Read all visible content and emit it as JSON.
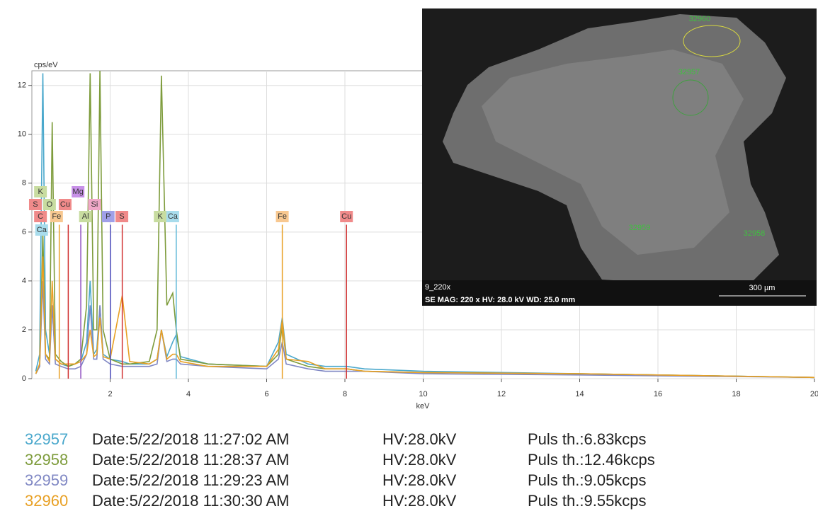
{
  "chart_data": {
    "type": "line",
    "y_label": "cps/eV",
    "x_label": "keV",
    "xlim": [
      0,
      20
    ],
    "ylim": [
      0,
      12.6
    ],
    "xticks": [
      2,
      4,
      6,
      8,
      10,
      12,
      14,
      16,
      18,
      20
    ],
    "yticks": [
      0,
      2,
      4,
      6,
      8,
      10,
      12
    ],
    "grid": true,
    "x": [
      0.1,
      0.2,
      0.28,
      0.35,
      0.45,
      0.52,
      0.6,
      0.75,
      0.93,
      1.1,
      1.25,
      1.4,
      1.49,
      1.58,
      1.66,
      1.74,
      1.82,
      2.0,
      2.31,
      2.5,
      3.0,
      3.2,
      3.31,
      3.45,
      3.6,
      3.69,
      3.8,
      4.5,
      6.0,
      6.3,
      6.4,
      6.5,
      7.06,
      7.5,
      8.05,
      8.5,
      10,
      14,
      20
    ],
    "series": [
      {
        "name": "32957",
        "color": "#4aa8cc",
        "values": [
          0.3,
          1,
          12.5,
          2,
          1,
          3,
          0.8,
          0.6,
          0.5,
          0.6,
          0.7,
          1.5,
          4,
          1,
          1.2,
          3,
          1,
          0.8,
          0.7,
          0.6,
          0.6,
          0.8,
          2,
          0.9,
          1.5,
          1.8,
          0.9,
          0.6,
          0.5,
          1.5,
          2.5,
          1,
          0.6,
          0.5,
          0.5,
          0.4,
          0.3,
          0.2,
          0.05
        ]
      },
      {
        "name": "32958",
        "color": "#7e9c3c",
        "values": [
          0.2,
          0.5,
          6,
          1,
          0.8,
          10.5,
          1,
          0.7,
          0.5,
          0.6,
          0.8,
          3,
          12.5,
          2,
          2,
          12.6,
          2,
          0.8,
          0.6,
          0.6,
          0.7,
          2,
          12.4,
          3,
          3.5,
          2,
          0.8,
          0.6,
          0.5,
          1,
          2.2,
          0.8,
          0.5,
          0.4,
          0.4,
          0.3,
          0.25,
          0.2,
          0.05
        ]
      },
      {
        "name": "32959",
        "color": "#8088c4",
        "values": [
          0.2,
          0.5,
          4,
          0.8,
          0.6,
          3,
          0.6,
          0.5,
          0.4,
          0.4,
          0.5,
          1,
          3,
          0.8,
          0.8,
          3,
          0.8,
          0.6,
          0.5,
          0.5,
          0.5,
          0.6,
          2,
          0.7,
          0.8,
          0.8,
          0.6,
          0.5,
          0.4,
          0.8,
          1.5,
          0.6,
          0.4,
          0.3,
          0.3,
          0.3,
          0.2,
          0.15,
          0.05
        ]
      },
      {
        "name": "32960",
        "color": "#e8a024",
        "values": [
          0.2,
          0.6,
          5,
          1,
          0.7,
          4,
          0.8,
          0.6,
          0.6,
          0.6,
          0.7,
          1,
          2,
          0.9,
          1,
          2.5,
          0.9,
          0.8,
          3.4,
          0.7,
          0.6,
          0.8,
          2,
          0.8,
          1,
          1,
          0.7,
          0.5,
          0.5,
          1.2,
          2.4,
          0.8,
          0.7,
          0.4,
          0.4,
          0.3,
          0.25,
          0.2,
          0.05
        ]
      }
    ],
    "markers": [
      {
        "x": 6.4,
        "y": 6.3,
        "color": "#e8a024"
      },
      {
        "x": 8.04,
        "y": 6.3,
        "color": "#d03030"
      },
      {
        "x": 3.69,
        "y": 6.3,
        "color": "#60b8d8"
      },
      {
        "x": 2.01,
        "y": 6.3,
        "color": "#5050c0"
      },
      {
        "x": 2.31,
        "y": 6.3,
        "color": "#d03030"
      },
      {
        "x": 0.93,
        "y": 6.3,
        "color": "#d03030"
      },
      {
        "x": 0.7,
        "y": 6.3,
        "color": "#e8a024"
      },
      {
        "x": 1.25,
        "y": 6.3,
        "color": "#9050c0"
      }
    ],
    "element_rows": [
      [
        {
          "label": "K",
          "x": 0.22,
          "color": "#c8dca0"
        },
        {
          "label": "Mg",
          "x": 1.18,
          "color": "#c890e8"
        }
      ],
      [
        {
          "label": "S",
          "x": 0.09,
          "color": "#f08a8a"
        },
        {
          "label": "O",
          "x": 0.45,
          "color": "#c8dca0"
        },
        {
          "label": "Cu",
          "x": 0.85,
          "color": "#f08a8a"
        },
        {
          "label": "Si",
          "x": 1.6,
          "color": "#f0a8c8"
        }
      ],
      [
        {
          "label": "C",
          "x": 0.22,
          "color": "#f08a8a"
        },
        {
          "label": "Fe",
          "x": 0.63,
          "color": "#f8c890"
        },
        {
          "label": "Al",
          "x": 1.37,
          "color": "#c8dca0"
        },
        {
          "label": "P",
          "x": 1.95,
          "color": "#a0a0e8"
        },
        {
          "label": "S",
          "x": 2.3,
          "color": "#f08a8a"
        },
        {
          "label": "K",
          "x": 3.28,
          "color": "#c8dca0"
        },
        {
          "label": "Ca",
          "x": 3.6,
          "color": "#a8dcec"
        },
        {
          "label": "Fe",
          "x": 6.4,
          "color": "#f8c890"
        },
        {
          "label": "Cu",
          "x": 8.04,
          "color": "#f08a8a"
        }
      ],
      [
        {
          "label": "Ca",
          "x": 0.25,
          "color": "#a8dcec"
        }
      ]
    ]
  },
  "image": {
    "regions": [
      "32960",
      "32957",
      "32959",
      "32958"
    ],
    "name": "9_220x",
    "info": "SE  MAG: 220 x  HV: 28.0 kV  WD: 25.0 mm",
    "scale": "300 µm"
  },
  "legend_rows": [
    {
      "date": "Date:5/22/2018 11:27:02 AM",
      "hv": "HV:28.0kV",
      "puls": "Puls th.:6.83kcps"
    },
    {
      "date": "Date:5/22/2018 11:28:37 AM",
      "hv": "HV:28.0kV",
      "puls": "Puls th.:12.46kcps"
    },
    {
      "date": "Date:5/22/2018 11:29:23 AM",
      "hv": "HV:28.0kV",
      "puls": "Puls th.:9.05kcps"
    },
    {
      "date": "Date:5/22/2018 11:30:30 AM",
      "hv": "HV:28.0kV",
      "puls": "Puls th.:9.55kcps"
    }
  ]
}
